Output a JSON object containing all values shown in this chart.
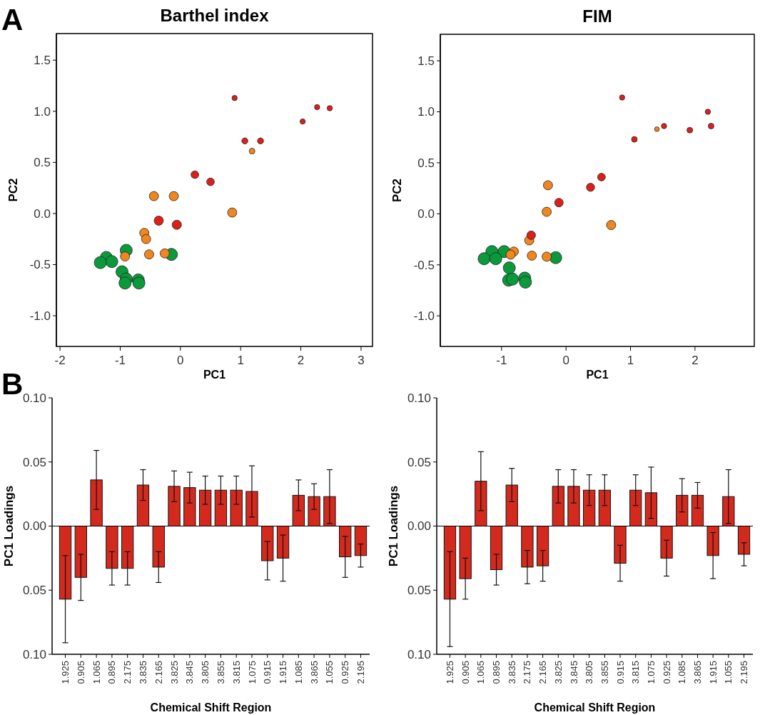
{
  "chart_data": [
    {
      "type": "bubble",
      "title": "Barthel index",
      "xlabel": "PC1",
      "ylabel": "PC2",
      "annotations": [
        "A"
      ],
      "xlim": [
        -2.06,
        3.19
      ],
      "xticks": [
        -2,
        -1,
        0,
        1,
        2,
        3
      ],
      "ylim": [
        -1.3,
        1.76
      ],
      "yticks": [
        1.5,
        {
          "value": 1,
          "label": "1.0"
        },
        0.5,
        {
          "value": 0,
          "label": "0.0"
        },
        -0.5,
        {
          "value": -1,
          "label": "-1.0"
        }
      ],
      "series": [
        {
          "color": "#0a9a3c",
          "x": [
            -0.9,
            -0.15,
            -1.23,
            -1.14,
            -1.33,
            -0.97,
            -0.9,
            -0.92,
            -0.7,
            -0.69
          ],
          "values": [
            -0.36,
            -0.4,
            -0.43,
            -0.47,
            -0.48,
            -0.57,
            -0.64,
            -0.68,
            -0.65,
            -0.68
          ],
          "sizes": [
            1,
            1,
            1,
            1,
            1,
            1,
            1,
            1,
            1,
            1
          ]
        },
        {
          "color": "#f0861d",
          "x": [
            1.19,
            -0.44,
            -0.11,
            0.86,
            -0.6,
            -0.57,
            -0.52,
            -0.26,
            -0.92
          ],
          "values": [
            0.61,
            0.17,
            0.17,
            0.01,
            -0.19,
            -0.25,
            -0.4,
            -0.39,
            -0.42
          ],
          "sizes": [
            0.22,
            0.58,
            0.58,
            0.58,
            0.58,
            0.58,
            0.58,
            0.58,
            0.58
          ]
        },
        {
          "color": "#dd1f1a",
          "x": [
            0.9,
            2.27,
            2.48,
            2.03,
            1.07,
            1.33,
            0.24,
            0.5,
            -0.36,
            -0.06
          ],
          "values": [
            1.13,
            1.04,
            1.03,
            0.9,
            0.71,
            0.71,
            0.38,
            0.31,
            -0.07,
            -0.11
          ],
          "sizes": [
            0.19,
            0.19,
            0.19,
            0.19,
            0.25,
            0.25,
            0.4,
            0.4,
            0.58,
            0.58
          ]
        }
      ]
    },
    {
      "type": "bubble",
      "title": "FIM",
      "xlabel": "PC1",
      "ylabel": "PC2",
      "xlim": [
        -1.95,
        2.92
      ],
      "xticks": [
        -1,
        0,
        1,
        2
      ],
      "ylim": [
        -1.3,
        1.76
      ],
      "yticks": [
        1.5,
        {
          "value": 1,
          "label": "1.0"
        },
        0.5,
        {
          "value": 0,
          "label": "0.0"
        },
        -0.5,
        {
          "value": -1,
          "label": "-1.0"
        }
      ],
      "series": [
        {
          "color": "#0a9a3c",
          "x": [
            -1.15,
            -0.96,
            -0.16,
            -1.27,
            -1.09,
            -0.88,
            -0.89,
            -0.83,
            -0.64,
            -0.63
          ],
          "values": [
            -0.37,
            -0.37,
            -0.43,
            -0.44,
            -0.44,
            -0.53,
            -0.65,
            -0.64,
            -0.63,
            -0.67
          ],
          "sizes": [
            1,
            1,
            1,
            1,
            1,
            1,
            1,
            1,
            1,
            1
          ]
        },
        {
          "color": "#f0861d",
          "x": [
            1.41,
            -0.28,
            -0.3,
            0.7,
            -0.57,
            -0.81,
            -0.86,
            -0.53,
            -0.3
          ],
          "values": [
            0.83,
            0.28,
            0.02,
            -0.11,
            -0.26,
            -0.37,
            -0.4,
            -0.41,
            -0.42
          ],
          "sizes": [
            0.15,
            0.58,
            0.58,
            0.58,
            0.58,
            0.58,
            0.58,
            0.58,
            0.58
          ]
        },
        {
          "color": "#dd1f1a",
          "x": [
            0.87,
            2.2,
            1.52,
            1.92,
            2.25,
            1.06,
            0.55,
            0.38,
            -0.11,
            -0.54
          ],
          "values": [
            1.14,
            1.0,
            0.86,
            0.82,
            0.86,
            0.73,
            0.36,
            0.26,
            0.11,
            -0.21
          ],
          "sizes": [
            0.19,
            0.19,
            0.19,
            0.22,
            0.22,
            0.22,
            0.4,
            0.45,
            0.5,
            0.5
          ]
        }
      ]
    },
    {
      "type": "bar",
      "xlabel": "Chemical Shift Region",
      "ylabel": "PC1 Loadings",
      "annotations": [
        "B"
      ],
      "color": "#d42a1e",
      "ylim": [
        -0.1,
        0.1
      ],
      "yticks": [
        {
          "value": 0.1,
          "label": "0.10"
        },
        {
          "value": 0.05,
          "label": "0.05"
        },
        {
          "value": 0,
          "label": "0.00"
        },
        {
          "value": -0.05,
          "label": "0.05"
        },
        {
          "value": -0.1,
          "label": "0.10"
        }
      ],
      "categories": [
        "1.925",
        "0.905",
        "1.065",
        "0.895",
        "2.175",
        "3.835",
        "2.165",
        "3.825",
        "3.845",
        "3.805",
        "3.855",
        "3.815",
        "1.075",
        "0.915",
        "1.915",
        "1.085",
        "3.865",
        "1.055",
        "0.925",
        "2.195"
      ],
      "values": [
        -0.057,
        -0.04,
        0.036,
        -0.033,
        -0.033,
        0.032,
        -0.032,
        0.031,
        0.03,
        0.028,
        0.028,
        0.028,
        0.027,
        -0.027,
        -0.025,
        0.024,
        0.023,
        0.023,
        -0.024,
        -0.023
      ],
      "errors": [
        0.034,
        0.018,
        0.023,
        0.013,
        0.013,
        0.012,
        0.012,
        0.012,
        0.012,
        0.011,
        0.011,
        0.011,
        0.02,
        0.015,
        0.018,
        0.012,
        0.01,
        0.021,
        0.016,
        0.009
      ]
    },
    {
      "type": "bar",
      "xlabel": "Chemical Shift Region",
      "ylabel": "PC1 Loadings",
      "color": "#d42a1e",
      "ylim": [
        -0.1,
        0.1
      ],
      "yticks": [
        {
          "value": 0.1,
          "label": "0.10"
        },
        {
          "value": 0.05,
          "label": "0.05"
        },
        {
          "value": 0,
          "label": "0.00"
        },
        {
          "value": -0.05,
          "label": "0.05"
        },
        {
          "value": -0.1,
          "label": "0.10"
        }
      ],
      "categories": [
        "1.925",
        "0.905",
        "1.065",
        "0.895",
        "3.835",
        "2.175",
        "2.165",
        "3.825",
        "3.845",
        "3.805",
        "3.855",
        "0.915",
        "3.815",
        "1.075",
        "0.925",
        "1.085",
        "3.865",
        "1.915",
        "1.055",
        "2.195"
      ],
      "values": [
        -0.057,
        -0.041,
        0.035,
        -0.034,
        0.032,
        -0.032,
        -0.031,
        0.031,
        0.031,
        0.028,
        0.028,
        -0.029,
        0.028,
        0.026,
        -0.025,
        0.024,
        0.024,
        -0.023,
        0.023,
        -0.022
      ],
      "errors": [
        0.037,
        0.016,
        0.023,
        0.012,
        0.013,
        0.013,
        0.012,
        0.013,
        0.013,
        0.012,
        0.012,
        0.014,
        0.012,
        0.02,
        0.014,
        0.013,
        0.01,
        0.018,
        0.021,
        0.009
      ]
    }
  ]
}
